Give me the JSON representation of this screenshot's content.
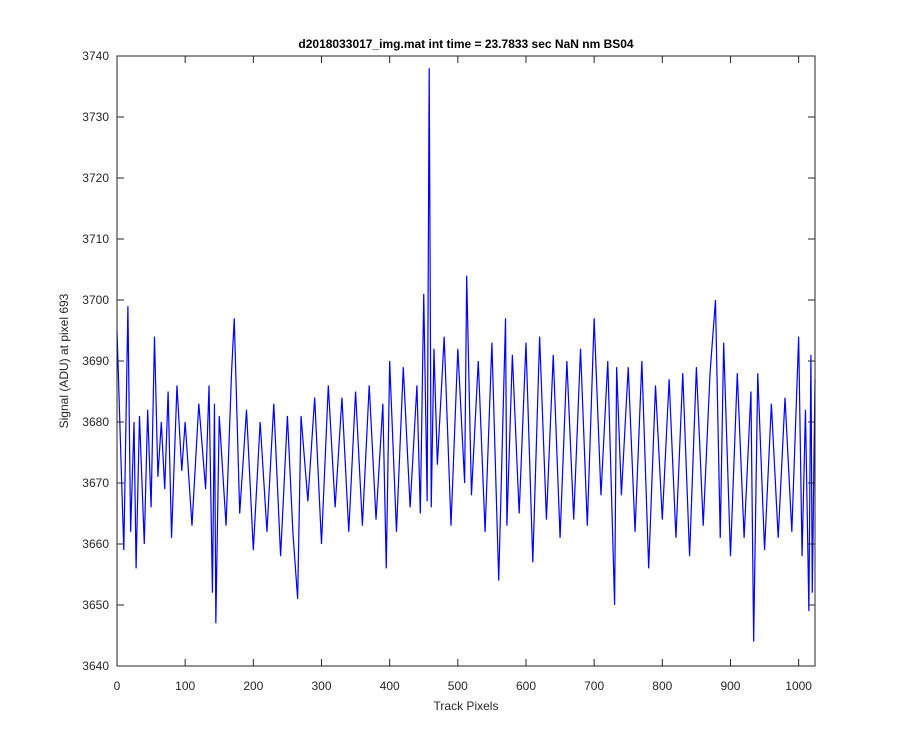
{
  "chart_data": {
    "type": "line",
    "title": "d2018033017_img.mat int time = 23.7833 sec  NaN nm BS04",
    "xlabel": "Track Pixels",
    "ylabel": "Signal (ADU) at pixel 693",
    "xlim": [
      0,
      1024
    ],
    "ylim": [
      3640,
      3740
    ],
    "xticks": [
      0,
      100,
      200,
      300,
      400,
      500,
      600,
      700,
      800,
      900,
      1000
    ],
    "yticks": [
      3640,
      3650,
      3660,
      3670,
      3680,
      3690,
      3700,
      3710,
      3720,
      3730,
      3740
    ],
    "grid": false,
    "series": [
      {
        "color": "#0000ff",
        "x": [
          0,
          8,
          10,
          16,
          20,
          25,
          28,
          33,
          40,
          45,
          50,
          55,
          60,
          65,
          70,
          75,
          80,
          88,
          95,
          100,
          110,
          120,
          130,
          135,
          140,
          143,
          145,
          150,
          160,
          168,
          172,
          180,
          190,
          200,
          210,
          220,
          230,
          240,
          250,
          258,
          265,
          270,
          280,
          290,
          300,
          310,
          320,
          330,
          340,
          350,
          360,
          370,
          380,
          390,
          395,
          400,
          410,
          420,
          430,
          440,
          445,
          450,
          455,
          458,
          461,
          465,
          470,
          480,
          490,
          500,
          510,
          513,
          520,
          530,
          540,
          550,
          560,
          570,
          572,
          580,
          590,
          600,
          610,
          620,
          630,
          640,
          650,
          660,
          670,
          680,
          690,
          700,
          710,
          720,
          730,
          733,
          740,
          750,
          760,
          770,
          780,
          790,
          800,
          810,
          820,
          830,
          840,
          850,
          860,
          870,
          878,
          885,
          890,
          900,
          910,
          920,
          930,
          934,
          940,
          950,
          960,
          970,
          980,
          990,
          1000,
          1005,
          1010,
          1015,
          1018,
          1020,
          1024
        ],
        "y": [
          3695,
          3666,
          3659,
          3699,
          3662,
          3680,
          3656,
          3681,
          3660,
          3682,
          3666,
          3694,
          3671,
          3680,
          3669,
          3685,
          3661,
          3686,
          3672,
          3680,
          3663,
          3683,
          3669,
          3686,
          3652,
          3683,
          3647,
          3681,
          3663,
          3688,
          3697,
          3665,
          3682,
          3659,
          3680,
          3662,
          3683,
          3658,
          3681,
          3662,
          3651,
          3681,
          3667,
          3684,
          3660,
          3686,
          3666,
          3684,
          3662,
          3685,
          3663,
          3686,
          3664,
          3683,
          3656,
          3690,
          3662,
          3689,
          3666,
          3686,
          3665,
          3701,
          3667,
          3738,
          3666,
          3692,
          3673,
          3694,
          3663,
          3692,
          3670,
          3704,
          3668,
          3690,
          3662,
          3693,
          3654,
          3697,
          3663,
          3691,
          3665,
          3693,
          3657,
          3694,
          3664,
          3691,
          3661,
          3690,
          3664,
          3692,
          3663,
          3697,
          3668,
          3690,
          3650,
          3689,
          3668,
          3689,
          3662,
          3690,
          3656,
          3686,
          3664,
          3687,
          3661,
          3688,
          3658,
          3689,
          3663,
          3688,
          3700,
          3661,
          3693,
          3658,
          3688,
          3661,
          3685,
          3644,
          3688,
          3659,
          3683,
          3661,
          3684,
          3662,
          3694,
          3658,
          3682,
          3649,
          3691,
          3652,
          3687
        ]
      }
    ]
  }
}
